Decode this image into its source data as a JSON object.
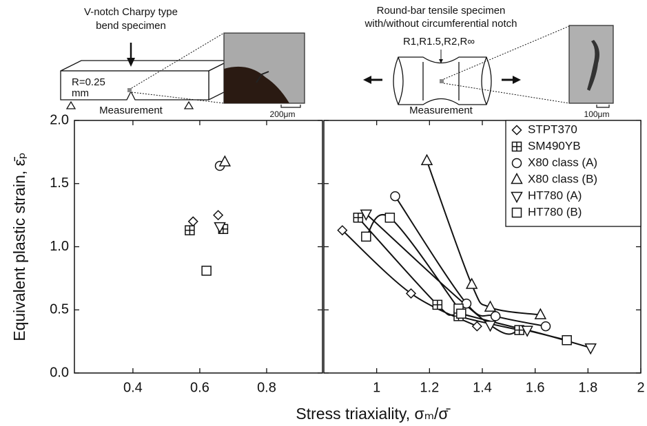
{
  "illustrations": {
    "charpy_title": [
      "V-notch Charpy type",
      "bend specimen"
    ],
    "charpy_radius": [
      "R=0.25",
      "mm"
    ],
    "charpy_measurement": "Measurement",
    "charpy_scale": "200μm",
    "tensile_title": [
      "Round-bar tensile specimen",
      "with/without circumferential notch"
    ],
    "tensile_radius": "R1,R1.5,R2,R∞",
    "tensile_measurement": "Measurement",
    "tensile_scale": "100μm"
  },
  "chart_data": [
    {
      "type": "scatter",
      "ylabel": "Equivalent plastic strain, ε̄ₚ",
      "xlim": [
        0.225,
        0.967
      ],
      "xticks": [
        0.4,
        0.6,
        0.8
      ],
      "ylim": [
        0,
        2
      ],
      "yticks": [
        {
          "value": 0,
          "label": "0.0"
        },
        {
          "value": 0.5,
          "label": "0.5"
        },
        {
          "value": 1,
          "label": "1.0"
        },
        {
          "value": 1.5,
          "label": "1.5"
        },
        {
          "value": 2,
          "label": "2.0"
        }
      ],
      "series": [
        {
          "marker": "diamond",
          "x": [
            0.58,
            0.655
          ],
          "values": [
            1.2,
            1.25
          ]
        },
        {
          "marker": "plus-square",
          "x": [
            0.57,
            0.67
          ],
          "values": [
            1.13,
            1.14
          ]
        },
        {
          "marker": "circle",
          "x": [
            0.66
          ],
          "values": [
            1.64
          ]
        },
        {
          "marker": "triangle-up",
          "x": [
            0.675
          ],
          "values": [
            1.67
          ]
        },
        {
          "marker": "triangle-down",
          "x": [
            0.66
          ],
          "values": [
            1.16
          ]
        },
        {
          "marker": "square",
          "x": [
            0.62
          ],
          "values": [
            0.81
          ]
        }
      ]
    },
    {
      "type": "scatter",
      "xlabel": "Stress triaxiality, σₘ/σ̄",
      "fit_curves": true,
      "legend": "upper right",
      "xlim": [
        0.8,
        2
      ],
      "xticks": [
        1,
        1.2,
        1.4,
        1.6,
        1.8,
        2
      ],
      "ylim": [
        0,
        2
      ],
      "yticks": [
        0,
        0.5,
        1,
        1.5,
        2
      ],
      "series": [
        {
          "name": "STPT370",
          "marker": "diamond",
          "x": [
            0.87,
            1.13,
            1.38
          ],
          "values": [
            1.13,
            0.63,
            0.37
          ]
        },
        {
          "name": "SM490YB",
          "marker": "plus-square",
          "x": [
            0.93,
            1.23,
            1.31,
            1.54
          ],
          "values": [
            1.23,
            0.54,
            0.45,
            0.34
          ]
        },
        {
          "name": "X80 class (A)",
          "marker": "circle",
          "x": [
            1.07,
            1.34,
            1.45,
            1.64
          ],
          "values": [
            1.4,
            0.55,
            0.45,
            0.37
          ]
        },
        {
          "name": "X80 class (B)",
          "marker": "triangle-up",
          "x": [
            1.19,
            1.36,
            1.43,
            1.62
          ],
          "values": [
            1.68,
            0.7,
            0.52,
            0.46
          ]
        },
        {
          "name": "HT780 (A)",
          "marker": "triangle-down",
          "x": [
            0.96,
            1.43,
            1.57,
            1.81
          ],
          "values": [
            1.26,
            0.38,
            0.34,
            0.2
          ]
        },
        {
          "name": "HT780 (B)",
          "marker": "square",
          "x": [
            0.96,
            1.05,
            1.31,
            1.32,
            1.72
          ],
          "values": [
            1.08,
            1.23,
            0.51,
            0.47,
            0.26
          ]
        }
      ]
    }
  ]
}
